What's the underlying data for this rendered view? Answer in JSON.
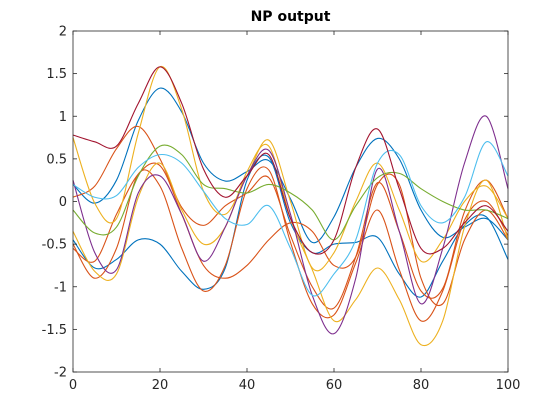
{
  "chart_data": {
    "type": "line",
    "title": "NP output",
    "xlabel": "",
    "ylabel": "",
    "xlim": [
      0,
      100
    ],
    "ylim": [
      -2,
      2
    ],
    "xticks": [
      "0",
      "20",
      "40",
      "60",
      "80",
      "100"
    ],
    "yticks": [
      "-2",
      "-1.5",
      "-1",
      "-0.5",
      "0",
      "0.5",
      "1",
      "1.5",
      "2"
    ],
    "grid": false,
    "legend": "none",
    "x": [
      0,
      5,
      10,
      15,
      20,
      25,
      30,
      35,
      40,
      45,
      50,
      55,
      60,
      65,
      70,
      75,
      80,
      85,
      90,
      95,
      100
    ],
    "series": [
      {
        "color": "#0072BD",
        "values": [
          0.2,
          -0.02,
          0.25,
          0.95,
          1.33,
          1.05,
          0.45,
          0.24,
          0.35,
          0.48,
          0.03,
          -0.48,
          -0.18,
          0.4,
          0.74,
          0.5,
          -0.1,
          -0.42,
          -0.3,
          -0.2,
          -0.45
        ]
      },
      {
        "color": "#0072BD",
        "values": [
          -0.45,
          -0.78,
          -0.68,
          -0.45,
          -0.5,
          -0.82,
          -1.03,
          -0.78,
          0.25,
          0.52,
          -0.25,
          -0.6,
          -0.5,
          -0.48,
          -0.42,
          -0.85,
          -1.12,
          -0.7,
          -0.28,
          -0.18,
          -0.68
        ]
      },
      {
        "color": "#D95319",
        "values": [
          0.05,
          0.18,
          0.62,
          0.88,
          0.5,
          -0.07,
          -0.28,
          -0.05,
          0.1,
          0.28,
          -0.4,
          -1.0,
          -1.25,
          -0.65,
          0.22,
          -0.35,
          -1.05,
          -1.02,
          -0.12,
          0.25,
          -0.2
        ]
      },
      {
        "color": "#D95319",
        "values": [
          -0.5,
          -0.9,
          -0.55,
          0.32,
          0.18,
          -0.55,
          -1.05,
          -0.75,
          0.15,
          0.37,
          -0.48,
          -1.2,
          -1.33,
          -0.72,
          -0.1,
          -0.8,
          -1.4,
          -1.05,
          -0.22,
          0.0,
          -0.4
        ]
      },
      {
        "color": "#D95319",
        "values": [
          -0.55,
          -0.7,
          -0.15,
          0.32,
          0.42,
          -0.15,
          -0.75,
          -0.9,
          -0.75,
          -0.45,
          -0.25,
          -0.35,
          -0.75,
          -0.65,
          0.2,
          0.2,
          -0.9,
          -1.2,
          -0.45,
          -0.1,
          -0.45
        ]
      },
      {
        "color": "#EDB120",
        "values": [
          0.75,
          -0.02,
          -0.2,
          0.8,
          1.58,
          1.08,
          0.12,
          -0.15,
          0.3,
          0.72,
          0.0,
          -0.78,
          -0.6,
          0.0,
          0.45,
          -0.1,
          -0.7,
          -0.45,
          0.0,
          0.18,
          -0.2
        ]
      },
      {
        "color": "#EDB120",
        "values": [
          -0.35,
          -0.82,
          -0.85,
          0.05,
          0.45,
          -0.1,
          -0.5,
          -0.3,
          0.35,
          0.65,
          -0.2,
          -0.8,
          -1.4,
          -1.15,
          -0.78,
          -1.15,
          -1.68,
          -1.4,
          -0.3,
          0.25,
          -0.45
        ]
      },
      {
        "color": "#7E2F8E",
        "values": [
          0.25,
          -0.6,
          -0.8,
          0.1,
          0.3,
          -0.15,
          -0.7,
          -0.3,
          0.3,
          0.6,
          -0.15,
          -1.1,
          -1.55,
          -0.9,
          0.38,
          -0.35,
          -1.2,
          -0.55,
          0.45,
          1.0,
          0.15
        ]
      },
      {
        "color": "#77AC30",
        "values": [
          -0.1,
          -0.37,
          -0.3,
          0.3,
          0.65,
          0.55,
          0.2,
          0.15,
          0.1,
          0.2,
          0.1,
          -0.1,
          -0.45,
          -0.05,
          0.28,
          0.33,
          0.15,
          0.0,
          -0.1,
          -0.1,
          -0.2
        ]
      },
      {
        "color": "#4DBEEE",
        "values": [
          0.2,
          0.05,
          0.07,
          0.4,
          0.55,
          0.45,
          0.12,
          -0.2,
          -0.27,
          -0.05,
          -0.55,
          -1.1,
          -0.85,
          -0.45,
          0.45,
          0.55,
          -0.05,
          -0.25,
          0.05,
          0.7,
          0.3
        ]
      },
      {
        "color": "#A2142F",
        "values": [
          0.78,
          0.7,
          0.65,
          1.15,
          1.58,
          1.15,
          0.38,
          0.05,
          0.3,
          0.55,
          -0.2,
          -0.6,
          -0.45,
          0.4,
          0.85,
          0.15,
          -0.55,
          -0.55,
          -0.25,
          -0.05,
          -0.35
        ]
      }
    ]
  }
}
